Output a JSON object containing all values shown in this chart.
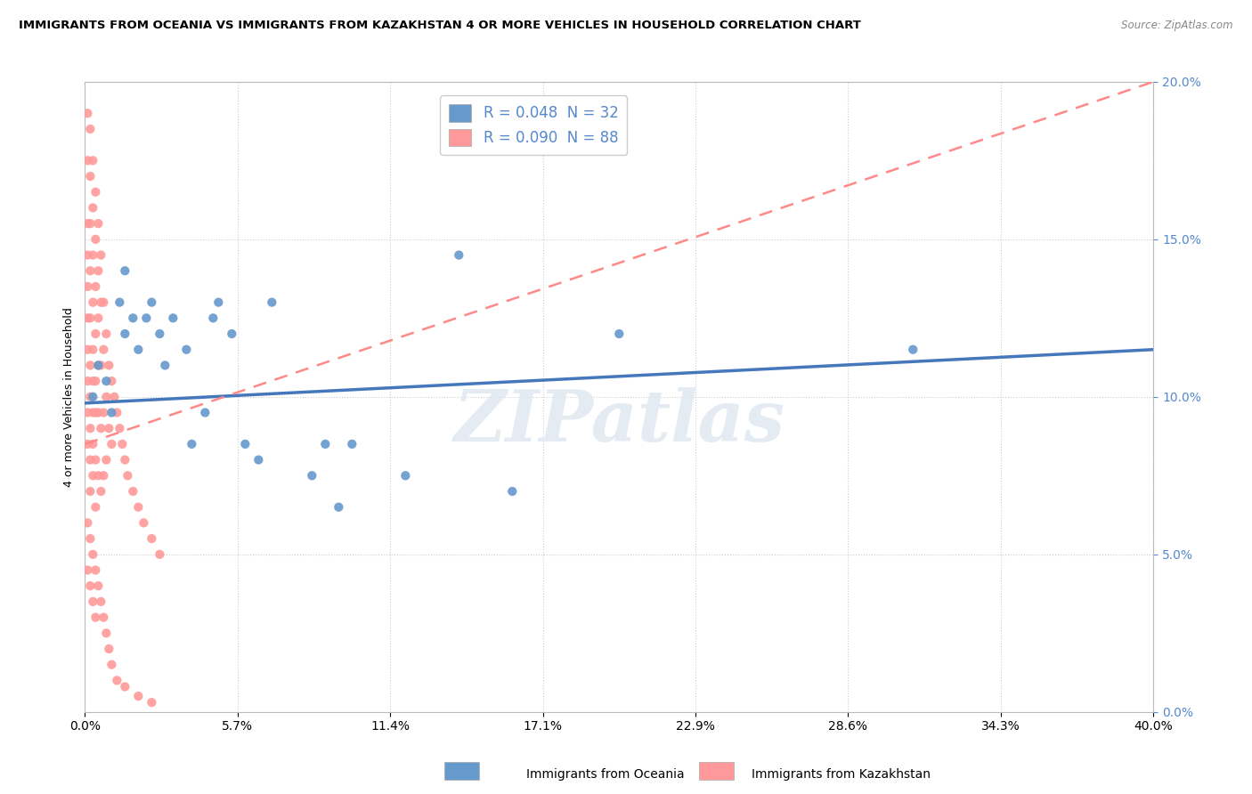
{
  "title": "IMMIGRANTS FROM OCEANIA VS IMMIGRANTS FROM KAZAKHSTAN 4 OR MORE VEHICLES IN HOUSEHOLD CORRELATION CHART",
  "source": "Source: ZipAtlas.com",
  "xmin": 0.0,
  "xmax": 0.4,
  "ymin": 0.0,
  "ymax": 0.2,
  "oceania_color": "#6699CC",
  "kazakhstan_color": "#FF9999",
  "oceania_trendline_color": "#4477BB",
  "kazakhstan_trendline_color": "#FF8888",
  "oceania_R": 0.048,
  "oceania_N": 32,
  "kazakhstan_R": 0.09,
  "kazakhstan_N": 88,
  "watermark": "ZIPatlas",
  "legend_oceania": "Immigrants from Oceania",
  "legend_kazakhstan": "Immigrants from Kazakhstan",
  "oceania_x": [
    0.003,
    0.005,
    0.008,
    0.01,
    0.013,
    0.015,
    0.015,
    0.018,
    0.02,
    0.023,
    0.025,
    0.028,
    0.03,
    0.033,
    0.038,
    0.04,
    0.045,
    0.048,
    0.05,
    0.055,
    0.06,
    0.065,
    0.07,
    0.085,
    0.09,
    0.095,
    0.1,
    0.12,
    0.14,
    0.16,
    0.2,
    0.31
  ],
  "oceania_y": [
    0.1,
    0.11,
    0.105,
    0.095,
    0.13,
    0.14,
    0.12,
    0.125,
    0.115,
    0.125,
    0.13,
    0.12,
    0.11,
    0.125,
    0.115,
    0.085,
    0.095,
    0.125,
    0.13,
    0.12,
    0.085,
    0.08,
    0.13,
    0.075,
    0.085,
    0.065,
    0.085,
    0.075,
    0.145,
    0.07,
    0.12,
    0.115
  ],
  "kazakhstan_x": [
    0.001,
    0.001,
    0.001,
    0.001,
    0.001,
    0.001,
    0.001,
    0.001,
    0.001,
    0.001,
    0.002,
    0.002,
    0.002,
    0.002,
    0.002,
    0.002,
    0.002,
    0.002,
    0.002,
    0.002,
    0.003,
    0.003,
    0.003,
    0.003,
    0.003,
    0.003,
    0.003,
    0.003,
    0.003,
    0.004,
    0.004,
    0.004,
    0.004,
    0.004,
    0.004,
    0.004,
    0.004,
    0.005,
    0.005,
    0.005,
    0.005,
    0.005,
    0.005,
    0.006,
    0.006,
    0.006,
    0.006,
    0.006,
    0.007,
    0.007,
    0.007,
    0.007,
    0.008,
    0.008,
    0.008,
    0.009,
    0.009,
    0.01,
    0.01,
    0.011,
    0.012,
    0.013,
    0.014,
    0.015,
    0.016,
    0.018,
    0.02,
    0.022,
    0.025,
    0.028,
    0.001,
    0.001,
    0.002,
    0.002,
    0.003,
    0.003,
    0.004,
    0.004,
    0.005,
    0.006,
    0.007,
    0.008,
    0.009,
    0.01,
    0.012,
    0.015,
    0.02,
    0.025
  ],
  "kazakhstan_y": [
    0.19,
    0.175,
    0.155,
    0.145,
    0.135,
    0.125,
    0.115,
    0.105,
    0.095,
    0.085,
    0.185,
    0.17,
    0.155,
    0.14,
    0.125,
    0.11,
    0.1,
    0.09,
    0.08,
    0.07,
    0.175,
    0.16,
    0.145,
    0.13,
    0.115,
    0.105,
    0.095,
    0.085,
    0.075,
    0.165,
    0.15,
    0.135,
    0.12,
    0.105,
    0.095,
    0.08,
    0.065,
    0.155,
    0.14,
    0.125,
    0.11,
    0.095,
    0.075,
    0.145,
    0.13,
    0.11,
    0.09,
    0.07,
    0.13,
    0.115,
    0.095,
    0.075,
    0.12,
    0.1,
    0.08,
    0.11,
    0.09,
    0.105,
    0.085,
    0.1,
    0.095,
    0.09,
    0.085,
    0.08,
    0.075,
    0.07,
    0.065,
    0.06,
    0.055,
    0.05,
    0.06,
    0.045,
    0.055,
    0.04,
    0.05,
    0.035,
    0.045,
    0.03,
    0.04,
    0.035,
    0.03,
    0.025,
    0.02,
    0.015,
    0.01,
    0.008,
    0.005,
    0.003
  ]
}
